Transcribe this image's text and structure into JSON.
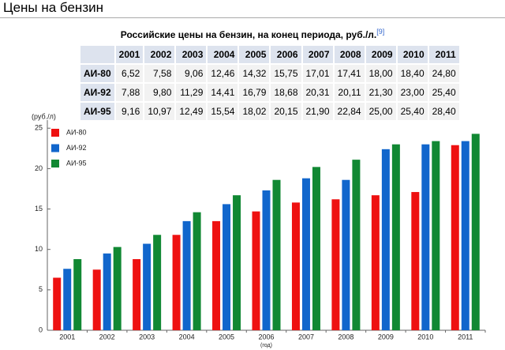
{
  "header": {
    "title": "Цены на бензин"
  },
  "table": {
    "caption": "Российские цены на бензин, на конец периода, руб./л.",
    "footnote": "[9]",
    "columns": [
      "2001",
      "2002",
      "2003",
      "2004",
      "2005",
      "2006",
      "2007",
      "2008",
      "2009",
      "2010",
      "2011"
    ],
    "rows": [
      {
        "label": "АИ-80",
        "cells": [
          "6,52",
          "7,58",
          "9,06",
          "12,46",
          "14,32",
          "15,75",
          "17,01",
          "17,41",
          "18,00",
          "18,40",
          "24,80"
        ]
      },
      {
        "label": "АИ-92",
        "cells": [
          "7,88",
          "9,80",
          "11,29",
          "14,41",
          "16,79",
          "18,68",
          "20,31",
          "20,11",
          "21,30",
          "23,00",
          "25,40"
        ]
      },
      {
        "label": "АИ-95",
        "cells": [
          "9,16",
          "10,97",
          "12,49",
          "15,54",
          "18,02",
          "20,15",
          "21,90",
          "22,84",
          "25,00",
          "25,40",
          "28,40"
        ]
      }
    ]
  },
  "chart_data": {
    "type": "bar",
    "y_label": "(руб./л)",
    "x_label": "(год)",
    "categories": [
      "2001",
      "2002",
      "2003",
      "2004",
      "2005",
      "2006",
      "2007",
      "2008",
      "2009",
      "2010",
      "2011"
    ],
    "series": [
      {
        "name": "АИ-80",
        "color": "#ee1111",
        "values": [
          6.5,
          7.5,
          8.8,
          11.8,
          13.5,
          14.7,
          15.8,
          16.2,
          16.7,
          17.1,
          22.9
        ]
      },
      {
        "name": "АИ-92",
        "color": "#1166cc",
        "values": [
          7.6,
          9.5,
          10.7,
          13.5,
          15.6,
          17.3,
          18.8,
          18.6,
          22.4,
          23.0,
          23.4
        ]
      },
      {
        "name": "АИ-95",
        "color": "#118833",
        "values": [
          8.8,
          10.3,
          11.8,
          14.6,
          16.7,
          18.6,
          20.2,
          21.1,
          23.0,
          23.4,
          24.3
        ]
      }
    ],
    "ylim": [
      0,
      26
    ],
    "yticks": [
      0,
      5,
      10,
      15,
      20,
      25
    ],
    "legend": "upper left",
    "grid": false
  }
}
